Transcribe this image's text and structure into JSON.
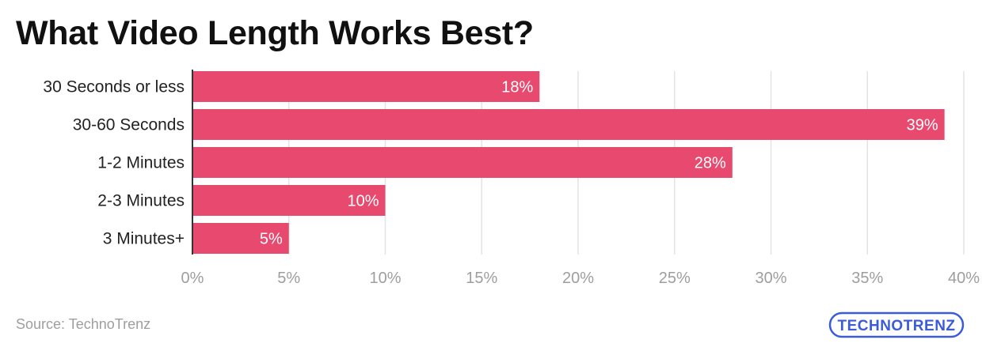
{
  "chart_data": {
    "type": "bar",
    "orientation": "horizontal",
    "title": "What Video Length Works Best?",
    "categories": [
      "30 Seconds or less",
      "30-60 Seconds",
      "1-2 Minutes",
      "2-3 Minutes",
      "3 Minutes+"
    ],
    "values": [
      18,
      39,
      28,
      10,
      5
    ],
    "data_labels": [
      "18%",
      "39%",
      "28%",
      "10%",
      "5%"
    ],
    "x_ticks": [
      0,
      5,
      10,
      15,
      20,
      25,
      30,
      35,
      40
    ],
    "x_tick_labels": [
      "0%",
      "5%",
      "10%",
      "15%",
      "20%",
      "25%",
      "30%",
      "35%",
      "40%"
    ],
    "xlim": [
      0,
      40
    ],
    "grid": true,
    "bar_color": "#e8496f",
    "xlabel": "",
    "ylabel": ""
  },
  "source": "Source: TechnoTrenz",
  "logo": {
    "text": "TECHNOTRENZ",
    "color": "#3b5bdb"
  }
}
